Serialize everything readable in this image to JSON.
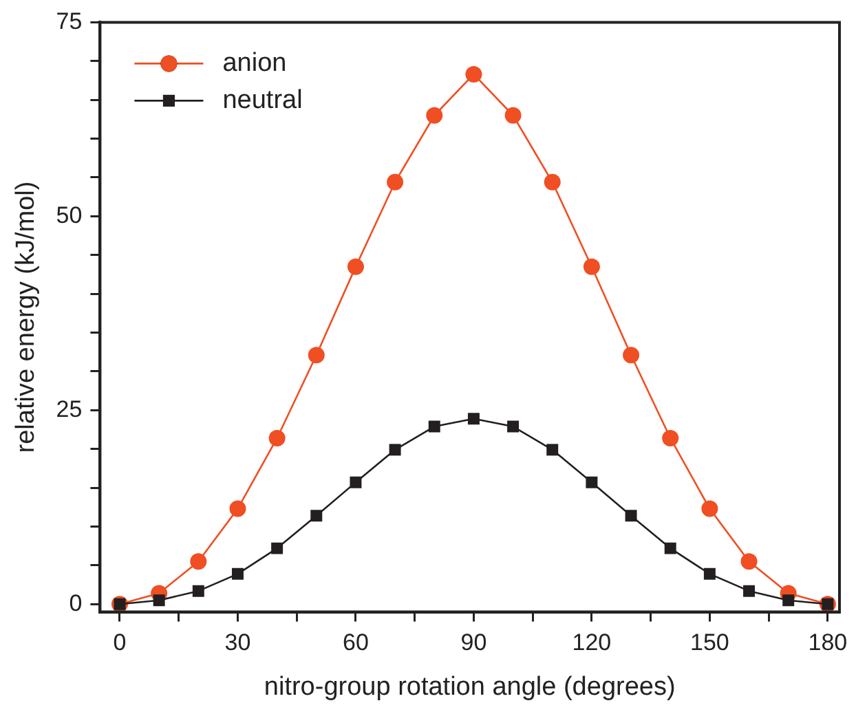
{
  "chart_data": {
    "type": "line",
    "xlabel": "nitro-group rotation angle (degrees)",
    "ylabel": "relative energy (kJ/mol)",
    "x": [
      0,
      10,
      20,
      30,
      40,
      50,
      60,
      70,
      80,
      90,
      100,
      110,
      120,
      130,
      140,
      150,
      160,
      170,
      180
    ],
    "series": [
      {
        "name": "anion",
        "color": "#f04e23",
        "marker": "circle",
        "values": [
          0,
          1.4,
          5.5,
          12.3,
          21.4,
          32.1,
          43.5,
          54.4,
          63,
          68.3,
          63,
          54.4,
          43.5,
          32.1,
          21.4,
          12.3,
          5.5,
          1.4,
          0
        ]
      },
      {
        "name": "neutral",
        "color": "#231f20",
        "marker": "square",
        "values": [
          0,
          0.5,
          1.7,
          3.9,
          7.2,
          11.4,
          15.7,
          19.9,
          22.9,
          23.9,
          22.9,
          19.9,
          15.7,
          11.4,
          7.2,
          3.9,
          1.7,
          0.5,
          0
        ]
      }
    ],
    "xlim": [
      -5,
      183
    ],
    "xticks": [
      0,
      {
        "value": 15,
        "label": null
      },
      30,
      {
        "value": 45,
        "label": null
      },
      60,
      {
        "value": 75,
        "label": null
      },
      90,
      {
        "value": 105,
        "label": null
      },
      120,
      {
        "value": 135,
        "label": null
      },
      150,
      {
        "value": 165,
        "label": null
      },
      180
    ],
    "ylim": [
      -1,
      75
    ],
    "yticks": [
      0,
      {
        "value": 5,
        "label": null
      },
      {
        "value": 10,
        "label": null
      },
      {
        "value": 15,
        "label": null
      },
      {
        "value": 20,
        "label": null
      },
      25,
      {
        "value": 30,
        "label": null
      },
      {
        "value": 35,
        "label": null
      },
      {
        "value": 40,
        "label": null
      },
      {
        "value": 45,
        "label": null
      },
      50,
      {
        "value": 55,
        "label": null
      },
      {
        "value": 60,
        "label": null
      },
      {
        "value": 65,
        "label": null
      },
      {
        "value": 70,
        "label": null
      },
      75
    ],
    "grid": false,
    "legend": "top left",
    "line_style": "solid"
  }
}
